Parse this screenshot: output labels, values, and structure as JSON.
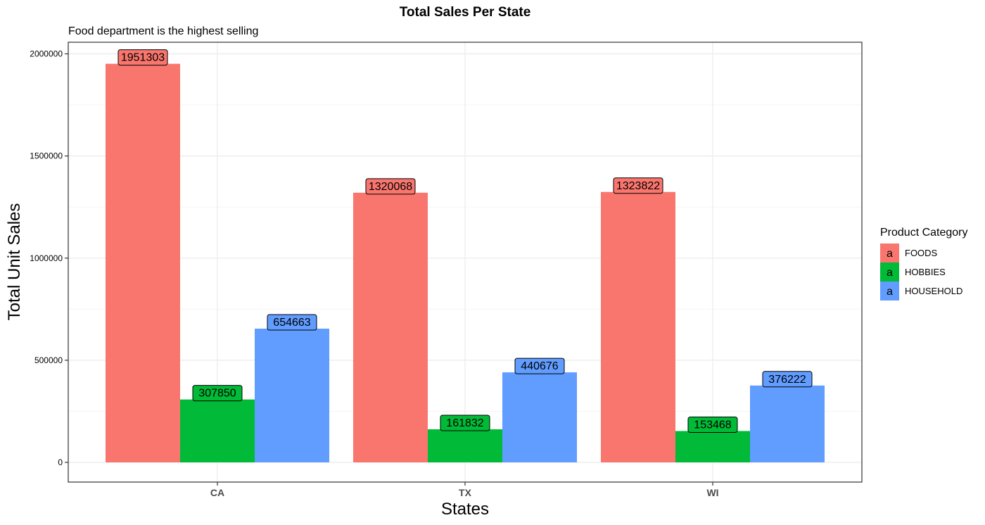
{
  "chart_data": {
    "type": "bar",
    "title": "Total Sales Per State",
    "subtitle": "Food department is the highest selling",
    "xlabel": "States",
    "ylabel": "Total Unit Sales",
    "categories": [
      "CA",
      "TX",
      "WI"
    ],
    "series": [
      {
        "name": "FOODS",
        "color": "#F8766D",
        "values": [
          1951303,
          1320068,
          1323822
        ],
        "labels": [
          "1951303",
          "1320068",
          "1323822"
        ]
      },
      {
        "name": "HOBBIES",
        "color": "#00BA38",
        "values": [
          307850,
          161832,
          153468
        ],
        "labels": [
          "307850",
          "161832",
          "153468"
        ]
      },
      {
        "name": "HOUSEHOLD",
        "color": "#619CFF",
        "values": [
          654663,
          440676,
          376222
        ],
        "labels": [
          "654663",
          "440676",
          "376222"
        ]
      }
    ],
    "yticks": [
      0,
      500000,
      1000000,
      1500000,
      2000000
    ],
    "ytick_labels": [
      "0",
      "500000",
      "1000000",
      "1500000",
      "2000000"
    ],
    "ylim": [
      0,
      2000000
    ],
    "grid": true,
    "legend": {
      "title": "Product Category",
      "placement": "right",
      "key_letter": "a"
    }
  }
}
